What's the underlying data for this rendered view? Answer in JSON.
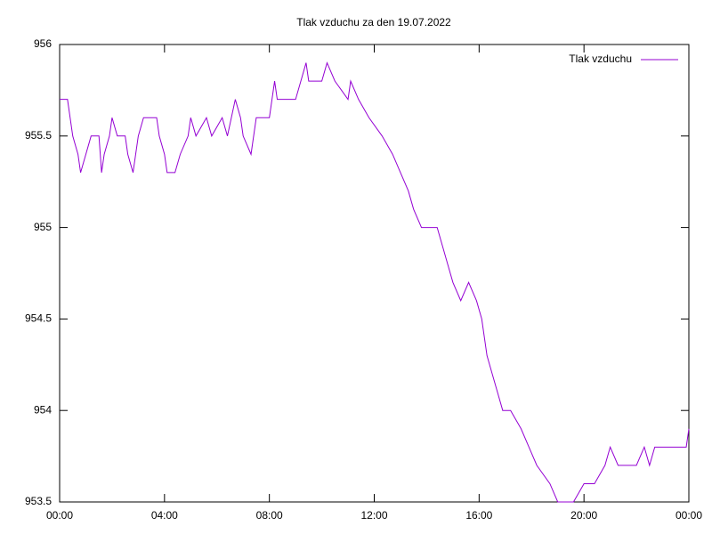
{
  "chart_data": {
    "type": "line",
    "title": "Tlak vzduchu za den 19.07.2022",
    "x": [
      0,
      0.3,
      0.5,
      0.7,
      0.8,
      1.0,
      1.2,
      1.5,
      1.6,
      1.7,
      1.9,
      2.0,
      2.2,
      2.5,
      2.6,
      2.8,
      3.0,
      3.2,
      3.7,
      3.8,
      4.0,
      4.1,
      4.4,
      4.6,
      4.9,
      5.0,
      5.2,
      5.6,
      5.8,
      6.2,
      6.4,
      6.7,
      6.9,
      7.0,
      7.3,
      7.5,
      8.0,
      8.1,
      8.2,
      8.3,
      9.0,
      9.2,
      9.4,
      9.5,
      10.0,
      10.2,
      10.5,
      11.0,
      11.1,
      11.4,
      11.8,
      12.3,
      12.7,
      13.0,
      13.3,
      13.5,
      13.8,
      14.4,
      14.6,
      14.8,
      15.0,
      15.3,
      15.6,
      15.9,
      16.1,
      16.3,
      16.5,
      16.7,
      16.9,
      17.2,
      17.6,
      17.9,
      18.2,
      18.7,
      19.0,
      19.6,
      20.0,
      20.4,
      20.8,
      21.0,
      21.3,
      22.0,
      22.3,
      22.5,
      22.7,
      23.9,
      24.0
    ],
    "series": [
      {
        "name": "Tlak vzduchu",
        "color": "#9400d3",
        "values": [
          955.7,
          955.7,
          955.5,
          955.4,
          955.3,
          955.4,
          955.5,
          955.5,
          955.3,
          955.4,
          955.5,
          955.6,
          955.5,
          955.5,
          955.4,
          955.3,
          955.5,
          955.6,
          955.6,
          955.5,
          955.4,
          955.3,
          955.3,
          955.4,
          955.5,
          955.6,
          955.5,
          955.6,
          955.5,
          955.6,
          955.5,
          955.7,
          955.6,
          955.5,
          955.4,
          955.6,
          955.6,
          955.7,
          955.8,
          955.7,
          955.7,
          955.8,
          955.9,
          955.8,
          955.8,
          955.9,
          955.8,
          955.7,
          955.8,
          955.7,
          955.6,
          955.5,
          955.4,
          955.3,
          955.2,
          955.1,
          955.0,
          955.0,
          954.9,
          954.8,
          954.7,
          954.6,
          954.7,
          954.6,
          954.5,
          954.3,
          954.2,
          954.1,
          954.0,
          954.0,
          953.9,
          953.8,
          953.7,
          953.6,
          953.5,
          953.5,
          953.6,
          953.6,
          953.7,
          953.8,
          953.7,
          953.7,
          953.8,
          953.7,
          953.8,
          953.8,
          953.9
        ]
      }
    ],
    "xlim": [
      0,
      24
    ],
    "xticks": [
      {
        "value": 0,
        "label": "00:00"
      },
      {
        "value": 4,
        "label": "04:00"
      },
      {
        "value": 8,
        "label": "08:00"
      },
      {
        "value": 12,
        "label": "12:00"
      },
      {
        "value": 16,
        "label": "16:00"
      },
      {
        "value": 20,
        "label": "20:00"
      },
      {
        "value": 24,
        "label": "00:00"
      }
    ],
    "ylim": [
      953.5,
      956
    ],
    "yticks": [
      953.5,
      954,
      954.5,
      955,
      955.5,
      956
    ],
    "legend": "top-right"
  }
}
